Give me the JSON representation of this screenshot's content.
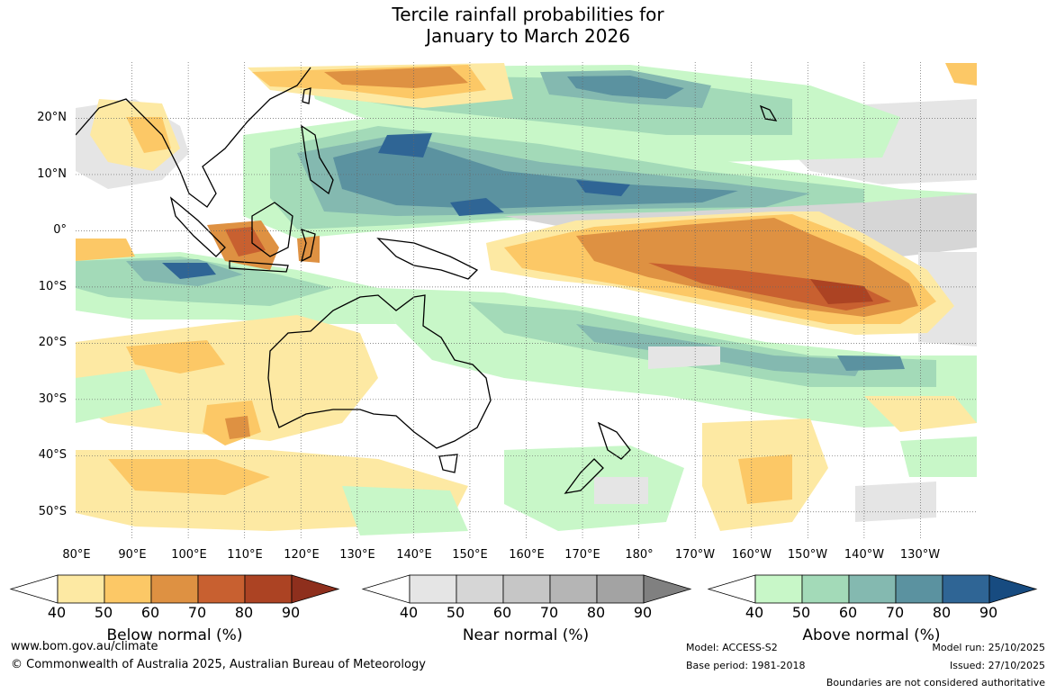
{
  "title": {
    "line1": "Tercile rainfall probabilities for",
    "line2": "January to March 2026"
  },
  "map": {
    "lon_range_deg_east": [
      80,
      240
    ],
    "lat_range_deg": [
      -55,
      30
    ],
    "lat_labels": [
      "20°N",
      "10°N",
      "0°",
      "10°S",
      "20°S",
      "30°S",
      "40°S",
      "50°S"
    ],
    "lon_labels": [
      "80°E",
      "90°E",
      "100°E",
      "110°E",
      "120°E",
      "130°E",
      "140°E",
      "150°E",
      "160°E",
      "170°E",
      "180°",
      "170°W",
      "160°W",
      "150°W",
      "140°W",
      "130°W"
    ],
    "gridlines": true
  },
  "legends": [
    {
      "title": "Below normal (%)",
      "ticks": [
        "40",
        "50",
        "60",
        "70",
        "80",
        "90"
      ],
      "colors": [
        "#ffffff",
        "#fde9a3",
        "#fcc866",
        "#de9142",
        "#c86030",
        "#ac4323",
        "#8e2f1d"
      ]
    },
    {
      "title": "Near normal (%)",
      "ticks": [
        "40",
        "50",
        "60",
        "70",
        "80",
        "90"
      ],
      "colors": [
        "#ffffff",
        "#e5e5e5",
        "#d6d6d6",
        "#c6c6c6",
        "#b5b5b5",
        "#a3a3a3",
        "#808080"
      ]
    },
    {
      "title": "Above normal (%)",
      "ticks": [
        "40",
        "50",
        "60",
        "70",
        "80",
        "90"
      ],
      "colors": [
        "#ffffff",
        "#c8f7c8",
        "#a3dab8",
        "#84b9b0",
        "#5b92a0",
        "#2f6595",
        "#174b80"
      ]
    }
  ],
  "footer": {
    "website": "www.bom.gov.au/climate",
    "copyright": "© Commonwealth of Australia 2025, Australian Bureau of Meteorology",
    "model": "Model: ACCESS-S2",
    "base_period": "Base period: 1981-2018",
    "model_run": "Model run: 25/10/2025",
    "issued": "Issued: 27/10/2025",
    "disclaimer": "Boundaries are not considered authoritative"
  }
}
